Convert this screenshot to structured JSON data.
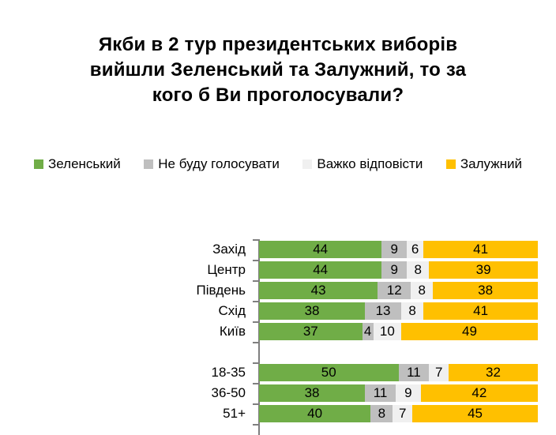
{
  "header": {
    "lines": [
      "Якби в 2 тур президентських виборів",
      "вийшли Зеленський та Залужний, то за",
      "кого б Ви проголосували?"
    ]
  },
  "legend": {
    "items": [
      {
        "label": "Зеленський",
        "color": "#70AD47"
      },
      {
        "label": "Не буду голосувати",
        "color": "#BFBFBF"
      },
      {
        "label": "Важко відповісти",
        "color": "#F0F0F0"
      },
      {
        "label": "Залужний",
        "color": "#FFC000"
      }
    ]
  },
  "colors": {
    "axis": "#7F7F7F",
    "text": "#000000",
    "background": "#FFFFFF"
  },
  "chart_data": {
    "type": "bar",
    "stacked": true,
    "orientation": "horizontal",
    "title": "Якби в 2 тур президентських виборів вийшли Зеленський та Залужний, то за кого б Ви проголосували?",
    "unit": "percent",
    "xlim": [
      0,
      100
    ],
    "grid": false,
    "legend_position": "top",
    "series_names": [
      "Зеленський",
      "Не буду голосувати",
      "Важко відповісти",
      "Залужний"
    ],
    "series_colors": [
      "#70AD47",
      "#BFBFBF",
      "#F0F0F0",
      "#FFC000"
    ],
    "groups": [
      {
        "name": "regions",
        "rows": [
          {
            "category": "Захід",
            "values": [
              44,
              9,
              6,
              41
            ]
          },
          {
            "category": "Центр",
            "values": [
              44,
              9,
              8,
              39
            ]
          },
          {
            "category": "Південь",
            "values": [
              43,
              12,
              8,
              38
            ]
          },
          {
            "category": "Схід",
            "values": [
              38,
              13,
              8,
              41
            ]
          },
          {
            "category": "Київ",
            "values": [
              37,
              4,
              10,
              49
            ]
          }
        ]
      },
      {
        "name": "age",
        "rows": [
          {
            "category": "18-35",
            "values": [
              50,
              11,
              7,
              32
            ]
          },
          {
            "category": "36-50",
            "values": [
              38,
              11,
              9,
              42
            ]
          },
          {
            "category": "51+",
            "values": [
              40,
              8,
              7,
              45
            ]
          }
        ]
      }
    ]
  }
}
